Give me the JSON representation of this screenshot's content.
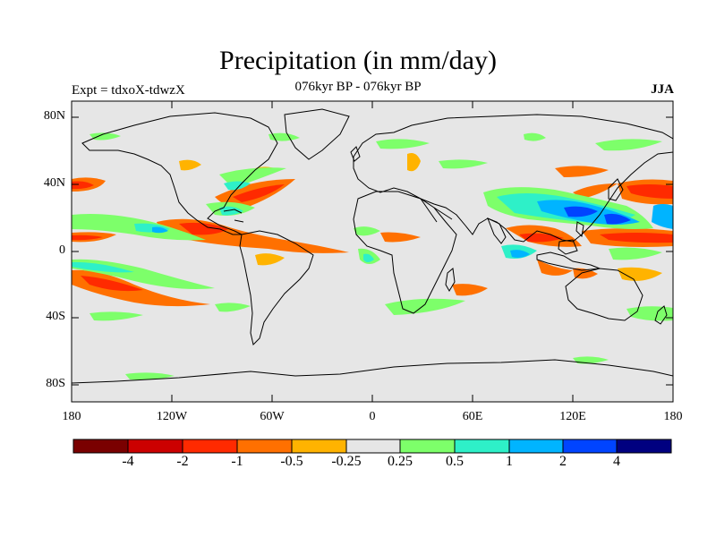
{
  "title": "Precipitation (in mm/day)",
  "subtitle": "076kyr BP - 076kyr BP",
  "experiment": "Expt = tdxoX-tdwzX",
  "season": "JJA",
  "lat_labels": [
    "80N",
    "40N",
    "0",
    "40S",
    "80S"
  ],
  "lon_labels": [
    "180",
    "120W",
    "60W",
    "0",
    "60E",
    "120E",
    "180"
  ],
  "colorbar": {
    "colors": [
      "#7a0000",
      "#cc0000",
      "#ff2a00",
      "#ff7000",
      "#ffb300",
      "#e6e6e6",
      "#7dff6a",
      "#2ef0c8",
      "#00b4ff",
      "#0044ff",
      "#000080"
    ],
    "labels": [
      "-4",
      "-2",
      "-1",
      "-0.5",
      "-0.25",
      "0.25",
      "0.5",
      "1",
      "2",
      "4"
    ]
  },
  "colors": {
    "land_ocean_background": "#e6e6e6",
    "coastline": "#000000"
  }
}
